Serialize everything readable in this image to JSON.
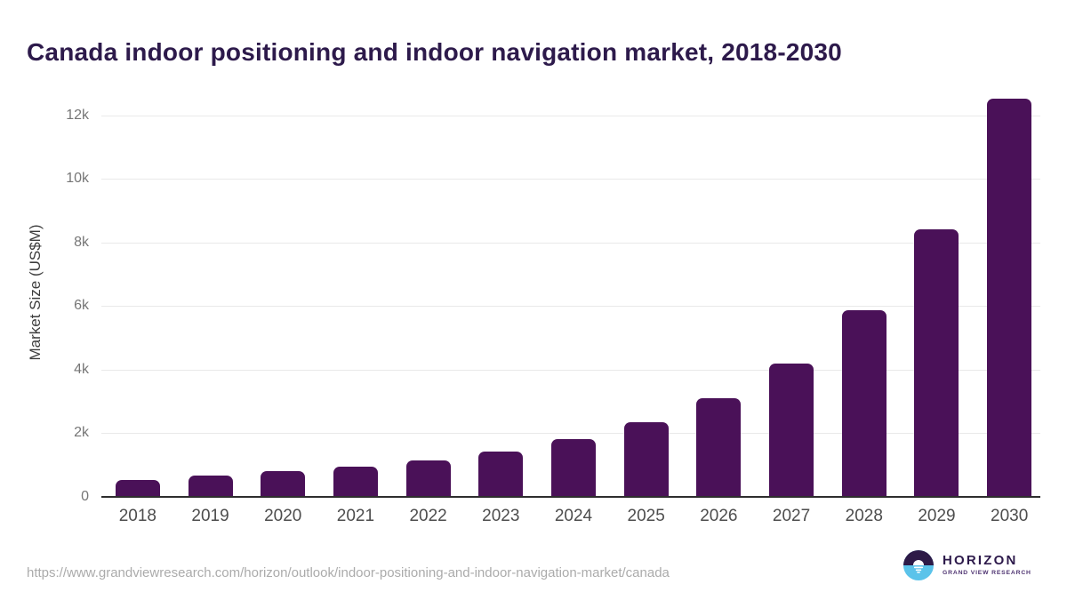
{
  "header": {
    "title": "Canada indoor positioning and indoor navigation market, 2018-2030"
  },
  "footer": {
    "source_url": "https://www.grandviewresearch.com/horizon/outlook/indoor-positioning-and-indoor-navigation-market/canada",
    "logo": {
      "brand": "HORIZON",
      "subbrand": "GRAND VIEW RESEARCH"
    }
  },
  "colors": {
    "bar": "#4a1158",
    "title": "#2d1a4b",
    "axis_line": "#2e2e2e",
    "gridline": "#e9e9e9",
    "logo_dark": "#2d1a47",
    "logo_blue": "#5bc3ea"
  },
  "chart_data": {
    "type": "bar",
    "title": "Canada indoor positioning and indoor navigation market, 2018-2030",
    "xlabel": "",
    "ylabel": "Market Size (US$M)",
    "categories": [
      "2018",
      "2019",
      "2020",
      "2021",
      "2022",
      "2023",
      "2024",
      "2025",
      "2026",
      "2027",
      "2028",
      "2029",
      "2030"
    ],
    "values": [
      515,
      650,
      785,
      925,
      1120,
      1420,
      1810,
      2340,
      3080,
      4170,
      5850,
      8400,
      12520
    ],
    "ylim": [
      0,
      13000
    ],
    "yticks": [
      {
        "value": 0,
        "label": "0"
      },
      {
        "value": 2000,
        "label": "2k"
      },
      {
        "value": 4000,
        "label": "4k"
      },
      {
        "value": 6000,
        "label": "6k"
      },
      {
        "value": 8000,
        "label": "8k"
      },
      {
        "value": 10000,
        "label": "10k"
      },
      {
        "value": 12000,
        "label": "12k"
      }
    ],
    "grid": true,
    "legend": false
  }
}
